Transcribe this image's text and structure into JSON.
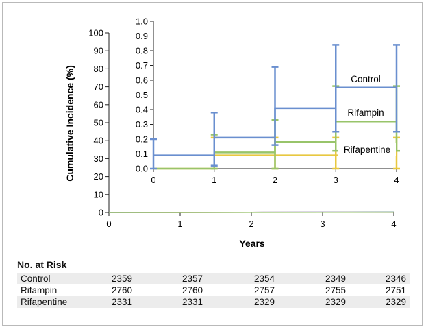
{
  "chart_data": {
    "type": "step",
    "main": {
      "xlabel": "Years",
      "ylabel": "Cumulative Incidence (%)",
      "xlim": [
        0,
        4
      ],
      "ylim": [
        0,
        100
      ],
      "xticks": [
        "0",
        "1",
        "2",
        "3",
        "4"
      ],
      "yticks": [
        "0",
        "10",
        "20",
        "30",
        "40",
        "50",
        "60",
        "70",
        "80",
        "90",
        "100"
      ]
    },
    "inset": {
      "xlim": [
        0,
        4
      ],
      "ylim": [
        0,
        1.0
      ],
      "xticks": [
        "0",
        "1",
        "2",
        "3",
        "4"
      ],
      "yticks": [
        "0.0",
        "0.1",
        "0.2",
        "0.3",
        "0.4",
        "0.5",
        "0.6",
        "0.7",
        "0.8",
        "0.9",
        "1.0"
      ],
      "series": [
        {
          "name": "Control",
          "color": "#6a8fcf",
          "steps": [
            [
              0,
              0.09
            ],
            [
              1,
              0.21
            ],
            [
              2,
              0.41
            ],
            [
              3,
              0.55
            ],
            [
              4,
              0.55
            ]
          ],
          "error_bars": [
            {
              "x": 0,
              "lo": 0.0,
              "hi": 0.2
            },
            {
              "x": 1,
              "lo": 0.02,
              "hi": 0.38
            },
            {
              "x": 2,
              "lo": 0.16,
              "hi": 0.69
            },
            {
              "x": 3,
              "lo": 0.25,
              "hi": 0.84
            },
            {
              "x": 4,
              "lo": 0.25,
              "hi": 0.84
            }
          ]
        },
        {
          "name": "Rifampin",
          "color": "#98c46a",
          "steps": [
            [
              0,
              0.0
            ],
            [
              1,
              0.11
            ],
            [
              2,
              0.18
            ],
            [
              3,
              0.32
            ],
            [
              4,
              0.32
            ]
          ],
          "error_bars": [
            {
              "x": 1,
              "lo": 0.0,
              "hi": 0.23
            },
            {
              "x": 2,
              "lo": 0.0,
              "hi": 0.33
            },
            {
              "x": 3,
              "lo": 0.12,
              "hi": 0.56
            },
            {
              "x": 4,
              "lo": 0.12,
              "hi": 0.56
            }
          ]
        },
        {
          "name": "Rifapentine",
          "color": "#e8c840",
          "steps": [
            [
              0,
              0.0
            ],
            [
              1,
              0.09
            ],
            [
              2,
              0.09
            ],
            [
              3,
              0.09
            ],
            [
              4,
              0.09
            ]
          ],
          "error_bars": [
            {
              "x": 1,
              "lo": 0.0,
              "hi": 0.21
            },
            {
              "x": 2,
              "lo": 0.0,
              "hi": 0.21
            },
            {
              "x": 3,
              "lo": 0.0,
              "hi": 0.21
            },
            {
              "x": 4,
              "lo": 0.0,
              "hi": 0.21
            }
          ]
        }
      ]
    }
  },
  "risk_table": {
    "title": "No. at Risk",
    "rows": [
      {
        "label": "Control",
        "values": [
          "2359",
          "2357",
          "2354",
          "2349",
          "2346"
        ]
      },
      {
        "label": "Rifampin",
        "values": [
          "2760",
          "2760",
          "2757",
          "2755",
          "2751"
        ]
      },
      {
        "label": "Rifapentine",
        "values": [
          "2331",
          "2331",
          "2329",
          "2329",
          "2329"
        ]
      }
    ]
  }
}
